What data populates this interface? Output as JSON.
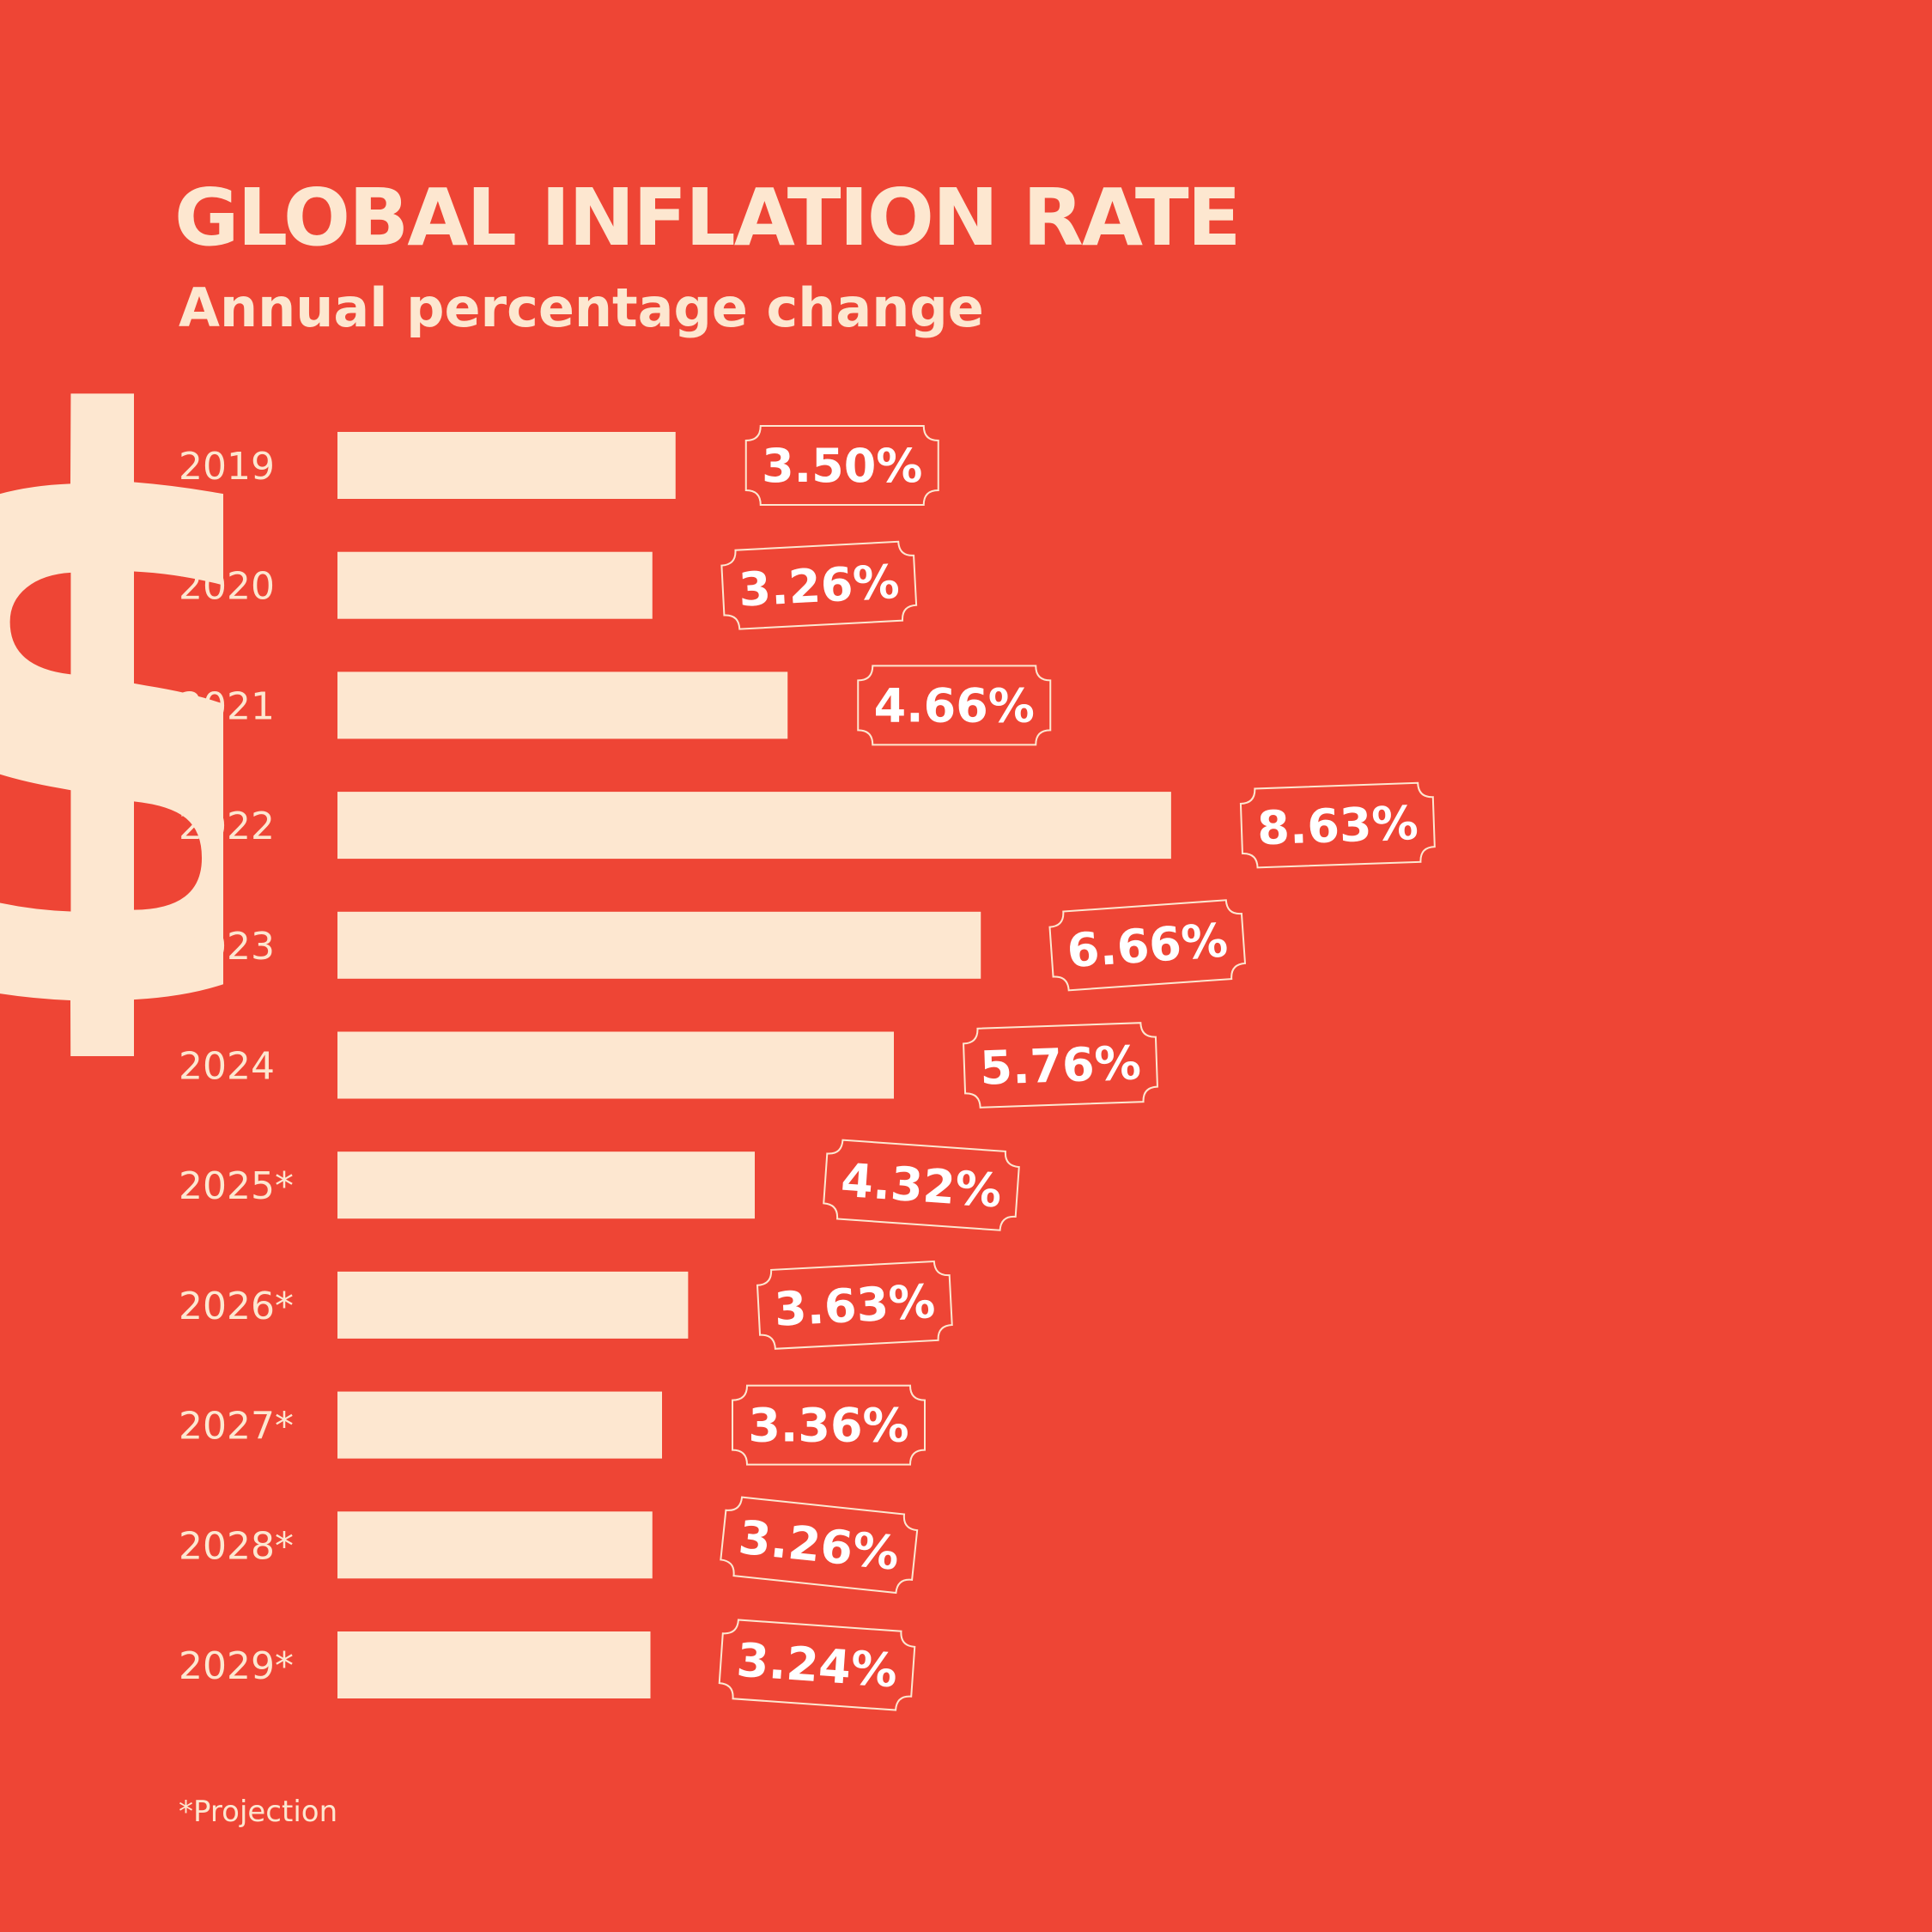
{
  "title": "GLOBAL INFLATION RATE",
  "subtitle": "Annual percentage change",
  "footnote": "*Projection",
  "decoration": {
    "icon": "dollar-sign-icon",
    "glyph": "$"
  },
  "colors": {
    "background": "#ee4535",
    "bar": "#fde7d0",
    "value_text": "#ffffff"
  },
  "chart_data": {
    "type": "bar",
    "orientation": "horizontal",
    "title": "GLOBAL INFLATION RATE",
    "subtitle": "Annual percentage change",
    "categories": [
      "2019",
      "2020",
      "2021",
      "2022",
      "2023",
      "2024",
      "2025*",
      "2026*",
      "2027*",
      "2028*",
      "2029*"
    ],
    "values": [
      3.5,
      3.26,
      4.66,
      8.63,
      6.66,
      5.76,
      4.32,
      3.63,
      3.36,
      3.26,
      3.24
    ],
    "value_labels": [
      "3.50%",
      "3.26%",
      "4.66%",
      "8.63%",
      "6.66%",
      "5.76%",
      "4.32%",
      "3.63%",
      "3.36%",
      "3.26%",
      "3.24%"
    ],
    "grid": false,
    "legend": "none"
  }
}
